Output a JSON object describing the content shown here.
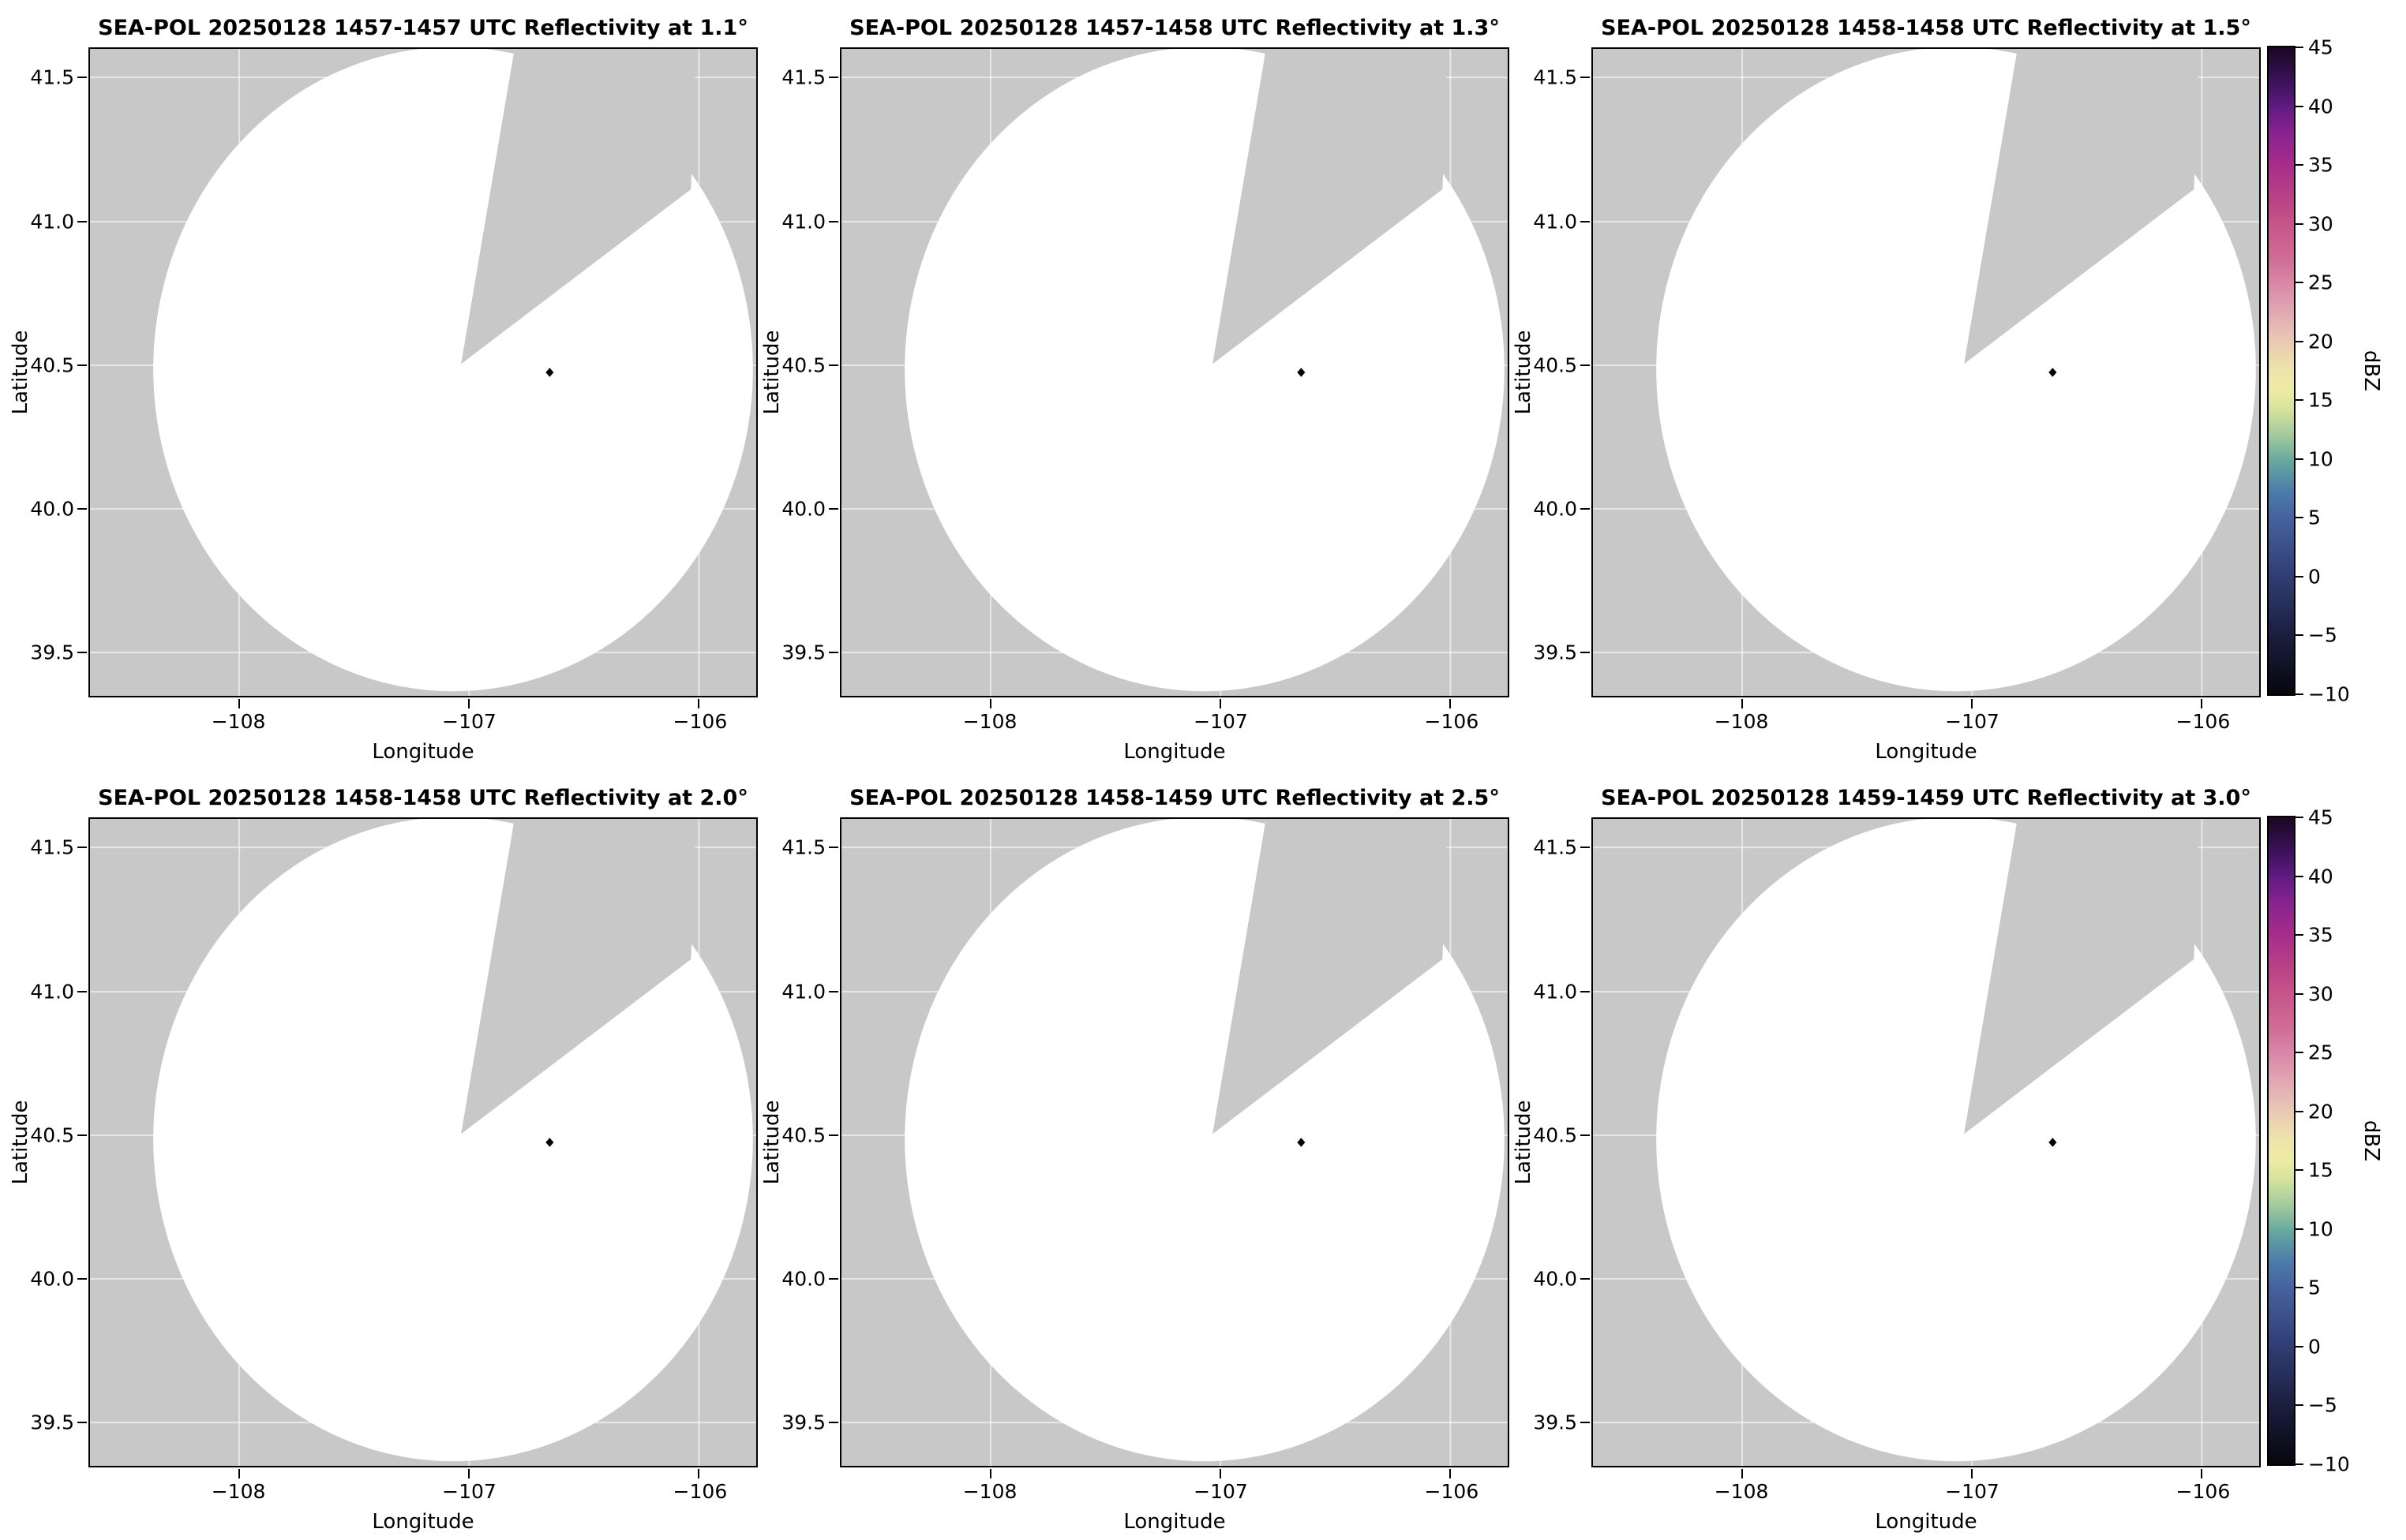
{
  "chart_data": {
    "type": "heatmap",
    "subtype": "radar-ppi-reflectivity-multipanel",
    "layout": {
      "rows": 2,
      "cols": 3,
      "colorbar_per_row": true,
      "grid": "on (faint)",
      "legend_position": "right colorbar"
    },
    "xlabel": "Longitude",
    "ylabel": "Latitude",
    "xlim": [
      -108.65,
      -105.75
    ],
    "ylim": [
      39.35,
      41.6
    ],
    "x_ticks": [
      -108,
      -107,
      -106
    ],
    "x_tick_labels": [
      "−108",
      "−107",
      "−106"
    ],
    "y_ticks": [
      41.5,
      41.0,
      40.5,
      40.0,
      39.5
    ],
    "y_tick_labels": [
      "41.5",
      "41.0",
      "40.5",
      "40.0",
      "39.5"
    ],
    "panels": [
      {
        "title": "SEA-POL 20250128 1457-1457 UTC Reflectivity at 1.1°",
        "radar": "SEA-POL",
        "date": "20250128",
        "time_utc": "1457-1457",
        "elevation_deg": 1.1
      },
      {
        "title": "SEA-POL 20250128 1457-1458 UTC Reflectivity at 1.3°",
        "radar": "SEA-POL",
        "date": "20250128",
        "time_utc": "1457-1458",
        "elevation_deg": 1.3
      },
      {
        "title": "SEA-POL 20250128 1458-1458 UTC Reflectivity at 1.5°",
        "radar": "SEA-POL",
        "date": "20250128",
        "time_utc": "1458-1458",
        "elevation_deg": 1.5
      },
      {
        "title": "SEA-POL 20250128 1458-1458 UTC Reflectivity at 2.0°",
        "radar": "SEA-POL",
        "date": "20250128",
        "time_utc": "1458-1458",
        "elevation_deg": 2.0
      },
      {
        "title": "SEA-POL 20250128 1458-1459 UTC Reflectivity at 2.5°",
        "radar": "SEA-POL",
        "date": "20250128",
        "time_utc": "1458-1459",
        "elevation_deg": 2.5
      },
      {
        "title": "SEA-POL 20250128 1459-1459 UTC Reflectivity at 3.0°",
        "radar": "SEA-POL",
        "date": "20250128",
        "time_utc": "1459-1459",
        "elevation_deg": 3.0
      }
    ],
    "notes": "All six elevation scans show no reflectivity echoes: white circular radar coverage area over gray no-data background, with a gray blocked wedge sector from the scan center toward the top/upper-right, and a small black radar-location marker near lon -106.75, lat 40.45.",
    "radar_marker": {
      "lon": -106.75,
      "lat": 40.45
    },
    "colors": {
      "no_data_background": "#c8c8c8",
      "scan_fill": "#ffffff",
      "marker": "#000000"
    },
    "colorbar": {
      "label": "dBZ",
      "vmin": -10,
      "vmax": 45,
      "ticks": [
        45,
        40,
        35,
        30,
        25,
        20,
        15,
        10,
        5,
        0,
        -5,
        -10
      ],
      "tick_labels": [
        "45",
        "40",
        "35",
        "30",
        "25",
        "20",
        "15",
        "10",
        "5",
        "0",
        "−5",
        "−10"
      ],
      "gradient_stops": [
        {
          "pos": 0,
          "color": "#190722"
        },
        {
          "pos": 5,
          "color": "#3a1157"
        },
        {
          "pos": 9,
          "color": "#5e1a80"
        },
        {
          "pos": 13,
          "color": "#86228f"
        },
        {
          "pos": 18,
          "color": "#a62c8a"
        },
        {
          "pos": 24,
          "color": "#bc4486"
        },
        {
          "pos": 27,
          "color": "#c65389"
        },
        {
          "pos": 33,
          "color": "#d06f97"
        },
        {
          "pos": 36,
          "color": "#d884a5"
        },
        {
          "pos": 41,
          "color": "#e2a9b4"
        },
        {
          "pos": 45,
          "color": "#e9c6b4"
        },
        {
          "pos": 49,
          "color": "#eddfad"
        },
        {
          "pos": 53,
          "color": "#eeeca4"
        },
        {
          "pos": 56,
          "color": "#d5e29d"
        },
        {
          "pos": 60,
          "color": "#a3ca9d"
        },
        {
          "pos": 64,
          "color": "#65a89f"
        },
        {
          "pos": 69,
          "color": "#4b79aa"
        },
        {
          "pos": 73,
          "color": "#45619e"
        },
        {
          "pos": 82,
          "color": "#303c72"
        },
        {
          "pos": 91,
          "color": "#1a1e3e"
        },
        {
          "pos": 100,
          "color": "#06060d"
        }
      ]
    }
  }
}
